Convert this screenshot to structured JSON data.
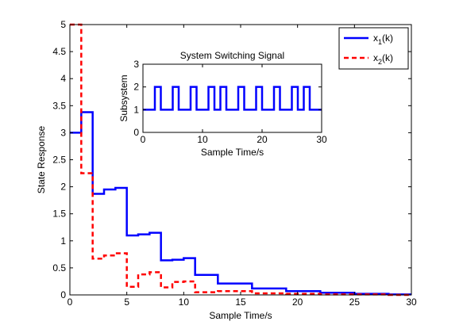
{
  "chart_data": [
    {
      "type": "line",
      "xlabel": "Sample Time/s",
      "ylabel": "State Response",
      "xlim": [
        0,
        30
      ],
      "ylim": [
        0,
        5
      ],
      "xticks": [
        0,
        5,
        10,
        15,
        20,
        25,
        30
      ],
      "yticks": [
        0,
        0.5,
        1,
        1.5,
        2,
        2.5,
        3,
        3.5,
        4,
        4.5,
        5
      ],
      "xtick_labels": [
        "0",
        "5",
        "10",
        "15",
        "20",
        "25",
        "30"
      ],
      "ytick_labels": [
        "0",
        "0.5",
        "1",
        "1.5",
        "2",
        "2.5",
        "3",
        "3.5",
        "4",
        "4.5",
        "5"
      ],
      "grid": false,
      "legend_position": "top-right",
      "step": "post",
      "series": [
        {
          "name": "x₁(k)",
          "name_base": "x",
          "name_sub": "1",
          "name_tail": "(k)",
          "color": "#0000ff",
          "style": "solid",
          "x": [
            0,
            1,
            2,
            3,
            4,
            5,
            6,
            7,
            8,
            9,
            10,
            11,
            12,
            13,
            14,
            15,
            16,
            17,
            18,
            19,
            20,
            21,
            22,
            23,
            24,
            25,
            26,
            27,
            28,
            29,
            30
          ],
          "y": [
            3.0,
            3.38,
            1.87,
            1.95,
            1.98,
            1.1,
            1.12,
            1.15,
            0.64,
            0.65,
            0.68,
            0.37,
            0.37,
            0.21,
            0.21,
            0.21,
            0.12,
            0.12,
            0.12,
            0.07,
            0.07,
            0.07,
            0.04,
            0.04,
            0.04,
            0.02,
            0.02,
            0.02,
            0.01,
            0.01,
            0.01
          ]
        },
        {
          "name": "x₂(k)",
          "name_base": "x",
          "name_sub": "2",
          "name_tail": "(k)",
          "color": "#ff0000",
          "style": "dashed",
          "x": [
            0,
            1,
            2,
            3,
            4,
            5,
            6,
            7,
            8,
            9,
            10,
            11,
            12,
            13,
            14,
            15,
            16,
            17,
            18,
            19,
            20,
            21,
            22,
            23,
            24,
            25,
            26,
            27,
            28,
            29,
            30
          ],
          "y": [
            5.0,
            2.25,
            0.67,
            0.73,
            0.77,
            0.15,
            0.38,
            0.42,
            0.14,
            0.24,
            0.25,
            0.05,
            0.05,
            0.07,
            0.07,
            0.07,
            0.03,
            0.03,
            0.03,
            0.02,
            0.02,
            0.02,
            0.01,
            0.01,
            0.01,
            0.01,
            0.01,
            0.01,
            0.0,
            0.0,
            0.0
          ]
        }
      ]
    },
    {
      "type": "line",
      "title": "System Switching Signal",
      "xlabel": "Sample Time/s",
      "ylabel": "Subsystem",
      "xlim": [
        0,
        30
      ],
      "ylim": [
        0,
        3
      ],
      "xticks": [
        0,
        10,
        20,
        30
      ],
      "yticks": [
        0,
        1,
        2,
        3
      ],
      "xtick_labels": [
        "0",
        "10",
        "20",
        "30"
      ],
      "ytick_labels": [
        "0",
        "1",
        "2",
        "3"
      ],
      "grid": false,
      "step": "post",
      "series": [
        {
          "color": "#0000ff",
          "style": "solid",
          "x": [
            0,
            1,
            2,
            3,
            4,
            5,
            6,
            7,
            8,
            9,
            10,
            11,
            12,
            13,
            14,
            15,
            16,
            17,
            18,
            19,
            20,
            21,
            22,
            23,
            24,
            25,
            26,
            27,
            28,
            29,
            30
          ],
          "y": [
            1,
            1,
            2,
            1,
            1,
            2,
            1,
            1,
            2,
            1,
            1,
            2,
            1,
            2,
            1,
            1,
            2,
            1,
            1,
            2,
            1,
            1,
            2,
            1,
            1,
            2,
            1,
            2,
            1,
            1,
            1
          ]
        }
      ]
    }
  ]
}
